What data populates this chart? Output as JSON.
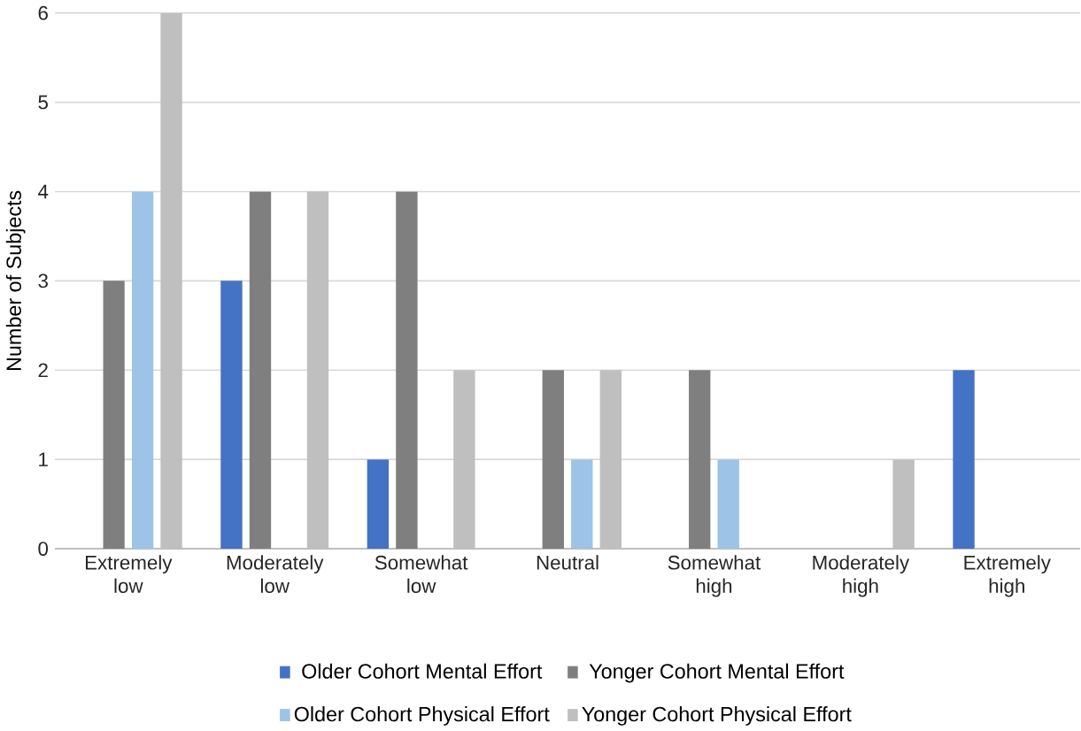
{
  "chart_data": {
    "type": "bar",
    "ylabel": "Number of Subjects",
    "categories": [
      "Extremely low",
      "Moderately low",
      "Somewhat low",
      "Neutral",
      "Somewhat high",
      "Moderately high",
      "Extremely high"
    ],
    "series": [
      {
        "name": "Older Cohort Mental Effort",
        "color": "#4472c4",
        "values": [
          0,
          3,
          1,
          0,
          0,
          0,
          2
        ]
      },
      {
        "name": "Yonger Cohort Mental Effort",
        "color": "#7f7f7f",
        "values": [
          3,
          4,
          4,
          2,
          2,
          0,
          0
        ]
      },
      {
        "name": "Older Cohort Physical Effort",
        "color": "#9dc3e6",
        "values": [
          4,
          0,
          0,
          1,
          1,
          0,
          0
        ]
      },
      {
        "name": "Yonger Cohort Physical Effort",
        "color": "#bfbfbf",
        "values": [
          6,
          4,
          2,
          2,
          0,
          1,
          0
        ]
      }
    ],
    "ylim": [
      0,
      6
    ],
    "yticks": [
      0,
      1,
      2,
      3,
      4,
      5,
      6
    ],
    "grid": "y",
    "legend": "bottom"
  }
}
